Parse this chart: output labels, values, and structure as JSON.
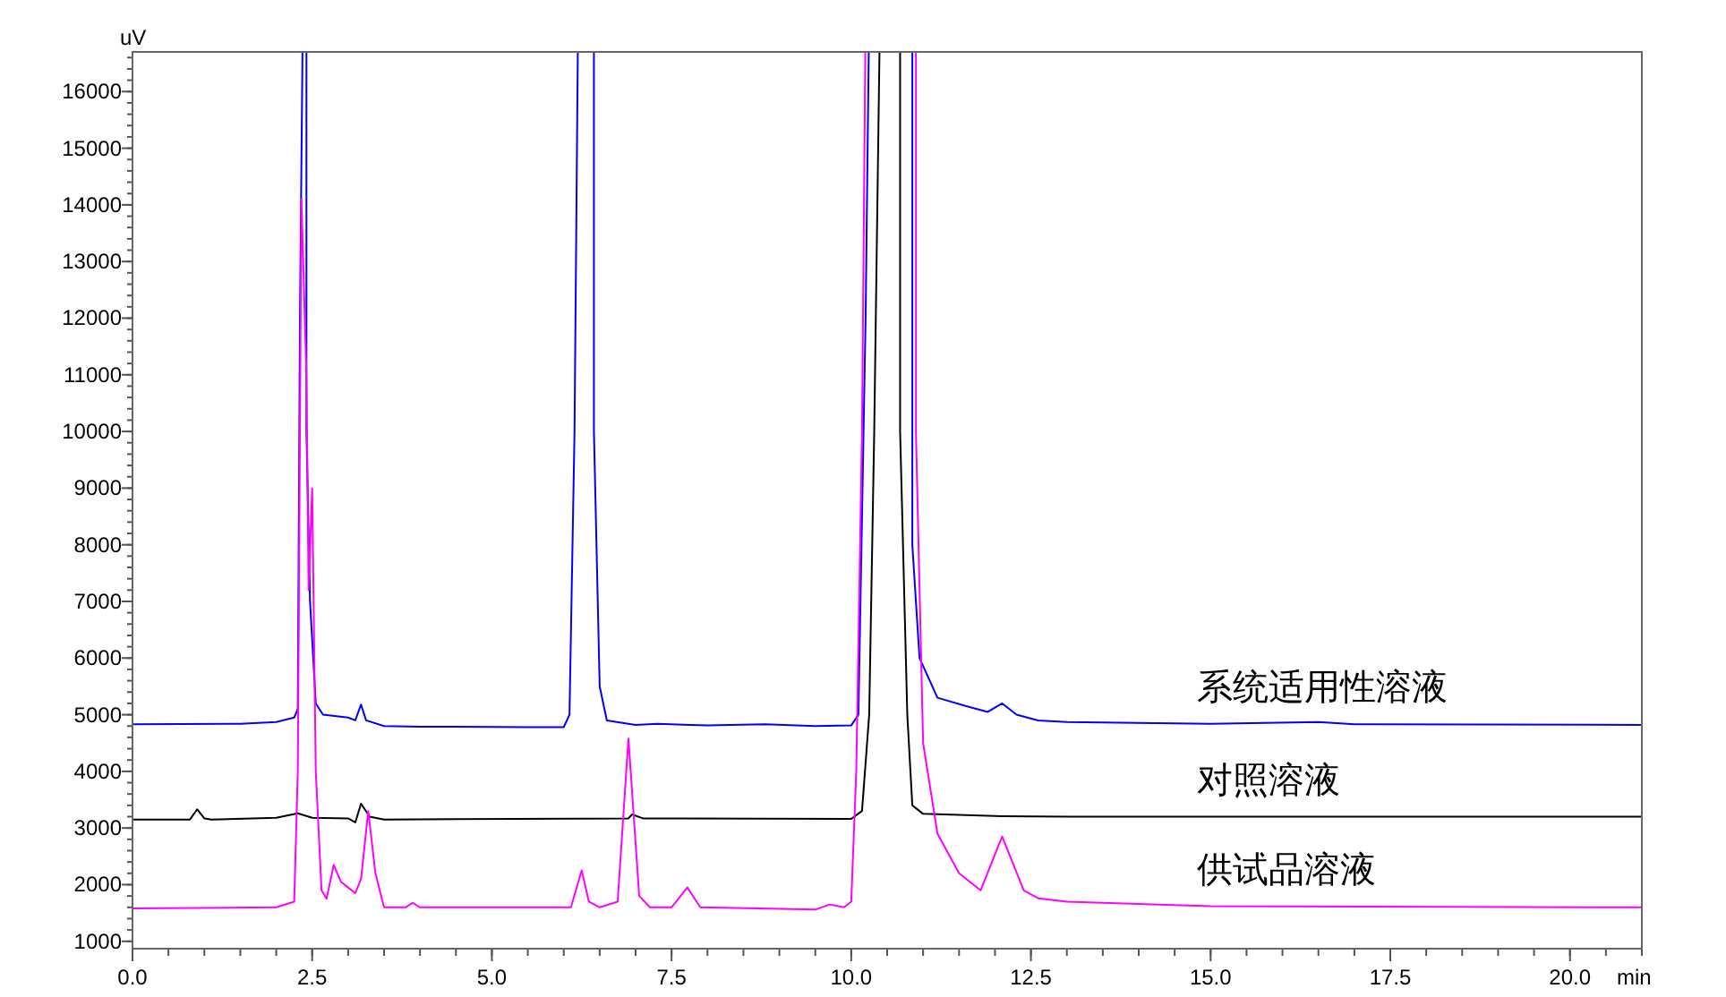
{
  "chart_data": {
    "type": "line",
    "xlabel": "min",
    "ylabel": "uV",
    "xlim": [
      0,
      21
    ],
    "ylim": [
      870,
      16700
    ],
    "xticks": [
      {
        "value": 0,
        "label": "0.0"
      },
      {
        "value": 2.5,
        "label": "2.5"
      },
      {
        "value": 5,
        "label": "5.0"
      },
      {
        "value": 7.5,
        "label": "7.5"
      },
      {
        "value": 10,
        "label": "10.0"
      },
      {
        "value": 12.5,
        "label": "12.5"
      },
      {
        "value": 15,
        "label": "15.0"
      },
      {
        "value": 17.5,
        "label": "17.5"
      },
      {
        "value": 20,
        "label": "20.0"
      }
    ],
    "yticks": [
      1000,
      2000,
      3000,
      4000,
      5000,
      6000,
      7000,
      8000,
      9000,
      10000,
      11000,
      12000,
      13000,
      14000,
      15000,
      16000
    ],
    "grid": false,
    "marker": "none",
    "line_style": "solid",
    "series": [
      {
        "name": "系统适用性溶液",
        "color": "#0000ff",
        "x": [
          0,
          1.5,
          2.0,
          2.25,
          2.3,
          2.33,
          2.37,
          2.42,
          2.47,
          2.55,
          2.65,
          3.0,
          3.1,
          3.18,
          3.25,
          3.5,
          4.0,
          5.5,
          6.0,
          6.08,
          6.15,
          6.2,
          6.38,
          6.42,
          6.5,
          6.6,
          7.0,
          7.3,
          8.0,
          8.8,
          9.5,
          10.0,
          10.1,
          10.2,
          10.25,
          10.8,
          10.85,
          10.95,
          11.2,
          11.6,
          11.9,
          12.1,
          12.3,
          12.6,
          13,
          15,
          16.5,
          17,
          21
        ],
        "values": [
          4830,
          4840,
          4870,
          4950,
          5100,
          12000,
          null,
          10000,
          7000,
          5200,
          5000,
          4950,
          4900,
          5180,
          4900,
          4800,
          4790,
          4780,
          4780,
          5000,
          10000,
          null,
          null,
          10000,
          5500,
          4900,
          4820,
          4840,
          4810,
          4830,
          4800,
          4810,
          5000,
          12000,
          null,
          null,
          8000,
          6000,
          5300,
          5150,
          5050,
          5200,
          5000,
          4900,
          4870,
          4840,
          4870,
          4830,
          4820
        ]
      },
      {
        "name": "对照溶液",
        "color": "#000000",
        "x": [
          0,
          0.8,
          0.9,
          1.0,
          1.1,
          2.0,
          2.3,
          2.5,
          3.0,
          3.1,
          3.18,
          3.3,
          3.5,
          6.9,
          6.95,
          7.1,
          10.0,
          10.15,
          10.25,
          10.32,
          10.4,
          10.6,
          10.68,
          10.78,
          10.85,
          11.0,
          12.1,
          13,
          21
        ],
        "values": [
          3150,
          3150,
          3330,
          3170,
          3150,
          3180,
          3260,
          3180,
          3170,
          3100,
          3430,
          3200,
          3150,
          3170,
          3240,
          3170,
          3160,
          3300,
          5000,
          10000,
          null,
          null,
          10000,
          5000,
          3400,
          3250,
          3210,
          3200,
          3200
        ]
      },
      {
        "name": "供试品溶液",
        "color": "#ff00ff",
        "x": [
          0,
          2.0,
          2.25,
          2.3,
          2.35,
          2.42,
          2.45,
          2.5,
          2.55,
          2.63,
          2.7,
          2.8,
          2.9,
          3.0,
          3.1,
          3.18,
          3.28,
          3.38,
          3.5,
          3.8,
          3.9,
          4.0,
          6.1,
          6.25,
          6.35,
          6.5,
          6.75,
          6.9,
          7.05,
          7.2,
          7.5,
          7.72,
          7.9,
          9.5,
          9.7,
          9.9,
          10.0,
          10.07,
          10.15,
          10.2,
          10.83,
          10.9,
          11.0,
          11.2,
          11.5,
          11.8,
          12.1,
          12.4,
          12.6,
          13,
          15,
          21
        ],
        "values": [
          1580,
          1600,
          1700,
          4000,
          14100,
          11000,
          7200,
          9000,
          4000,
          1900,
          1750,
          2350,
          2050,
          1950,
          1850,
          2100,
          3300,
          2200,
          1600,
          1600,
          1680,
          1600,
          1600,
          2250,
          1700,
          1600,
          1700,
          4580,
          1800,
          1600,
          1600,
          1950,
          1600,
          1560,
          1650,
          1600,
          1700,
          4000,
          10000,
          null,
          null,
          10000,
          4500,
          2900,
          2200,
          1900,
          2850,
          1900,
          1760,
          1700,
          1620,
          1600
        ]
      }
    ]
  }
}
